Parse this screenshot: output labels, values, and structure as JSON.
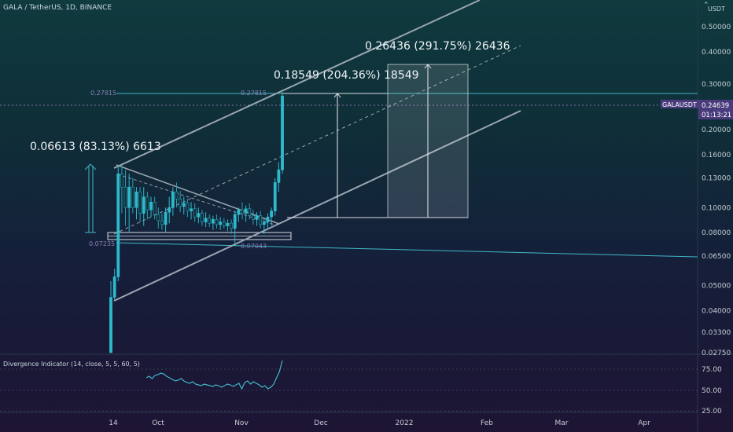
{
  "header": {
    "symbol_title": "GALA / TetherUS, 1D, BINANCE",
    "currency": "USDT"
  },
  "price_tag": {
    "symbol": "GALAUSDT",
    "price": "0.24639",
    "countdown": "01:13:21",
    "color": "#4a3c7c"
  },
  "chart_data": {
    "type": "candlestick",
    "y_scale": "log",
    "y_range": [
      0.0275,
      0.7
    ],
    "y_ticks": [
      "0.50000",
      "0.40000",
      "0.30000",
      "0.20000",
      "0.16000",
      "0.13000",
      "0.10000",
      "0.08000",
      "0.06500",
      "0.05000",
      "0.04000",
      "0.03300",
      "0.02750"
    ],
    "x_ticks": [
      "14",
      "Oct",
      "Nov",
      "Dec",
      "2022",
      "Feb",
      "Mar",
      "Apr"
    ],
    "levels": [
      {
        "label": "0.27815",
        "value": 0.27815
      },
      {
        "label": "0.07235",
        "value": 0.07235
      },
      {
        "label": "0.07043",
        "value": 0.07043
      }
    ],
    "measurements": [
      {
        "label": "0.06613 (83.13%) 6613",
        "from": 0.0796,
        "to": 0.1457
      },
      {
        "label": "0.18549 (204.36%) 18549",
        "from": 0.0907,
        "to": 0.2762
      },
      {
        "label": "0.26436 (291.75%) 26436",
        "from": 0.0907,
        "to": 0.3551
      }
    ],
    "candles": [
      [
        0.0275,
        0.0275,
        0.052,
        0.045
      ],
      [
        0.045,
        0.044,
        0.058,
        0.054
      ],
      [
        0.054,
        0.052,
        0.145,
        0.135
      ],
      [
        0.135,
        0.095,
        0.145,
        0.12
      ],
      [
        0.12,
        0.085,
        0.14,
        0.1
      ],
      [
        0.1,
        0.08,
        0.135,
        0.12
      ],
      [
        0.12,
        0.095,
        0.13,
        0.1
      ],
      [
        0.1,
        0.09,
        0.12,
        0.115
      ],
      [
        0.115,
        0.088,
        0.12,
        0.095
      ],
      [
        0.095,
        0.085,
        0.12,
        0.11
      ],
      [
        0.11,
        0.09,
        0.115,
        0.098
      ],
      [
        0.098,
        0.092,
        0.11,
        0.105
      ],
      [
        0.105,
        0.09,
        0.11,
        0.094
      ],
      [
        0.094,
        0.083,
        0.1,
        0.089
      ],
      [
        0.089,
        0.082,
        0.095,
        0.086
      ],
      [
        0.086,
        0.08,
        0.1,
        0.096
      ],
      [
        0.096,
        0.087,
        0.11,
        0.1
      ],
      [
        0.1,
        0.093,
        0.12,
        0.115
      ],
      [
        0.115,
        0.1,
        0.125,
        0.108
      ],
      [
        0.108,
        0.096,
        0.116,
        0.101
      ],
      [
        0.101,
        0.094,
        0.11,
        0.104
      ],
      [
        0.104,
        0.092,
        0.108,
        0.097
      ],
      [
        0.097,
        0.09,
        0.105,
        0.099
      ],
      [
        0.099,
        0.088,
        0.104,
        0.092
      ],
      [
        0.092,
        0.087,
        0.1,
        0.095
      ],
      [
        0.095,
        0.085,
        0.098,
        0.088
      ],
      [
        0.088,
        0.084,
        0.096,
        0.091
      ],
      [
        0.091,
        0.084,
        0.094,
        0.087
      ],
      [
        0.087,
        0.082,
        0.093,
        0.09
      ],
      [
        0.09,
        0.083,
        0.094,
        0.086
      ],
      [
        0.086,
        0.082,
        0.092,
        0.088
      ],
      [
        0.088,
        0.083,
        0.091,
        0.085
      ],
      [
        0.085,
        0.081,
        0.09,
        0.087
      ],
      [
        0.087,
        0.079,
        0.09,
        0.083
      ],
      [
        0.083,
        0.071,
        0.097,
        0.094
      ],
      [
        0.094,
        0.088,
        0.1,
        0.098
      ],
      [
        0.098,
        0.09,
        0.105,
        0.095
      ],
      [
        0.095,
        0.088,
        0.102,
        0.099
      ],
      [
        0.099,
        0.09,
        0.104,
        0.093
      ],
      [
        0.093,
        0.086,
        0.098,
        0.09
      ],
      [
        0.09,
        0.085,
        0.096,
        0.093
      ],
      [
        0.093,
        0.083,
        0.097,
        0.086
      ],
      [
        0.086,
        0.079,
        0.091,
        0.088
      ],
      [
        0.088,
        0.083,
        0.095,
        0.092
      ],
      [
        0.092,
        0.085,
        0.1,
        0.097
      ],
      [
        0.097,
        0.093,
        0.13,
        0.125
      ],
      [
        0.125,
        0.115,
        0.15,
        0.14
      ],
      [
        0.14,
        0.135,
        0.28,
        0.27
      ]
    ]
  },
  "indicator": {
    "title": "Divergence Indicator (14, close, 5, 5, 60, 5)",
    "ticks": [
      "75.00",
      "50.00",
      "25.00"
    ],
    "y_range": [
      20,
      90
    ],
    "values": [
      64,
      66,
      63,
      67,
      68,
      70,
      69,
      66,
      64,
      62,
      60,
      61,
      63,
      60,
      58,
      57,
      59,
      56,
      55,
      54,
      56,
      55,
      54,
      53,
      55,
      54,
      52,
      54,
      56,
      55,
      53,
      55,
      57,
      50,
      58,
      60,
      56,
      59,
      57,
      55,
      52,
      54,
      50,
      52,
      56,
      64,
      72,
      86
    ]
  }
}
